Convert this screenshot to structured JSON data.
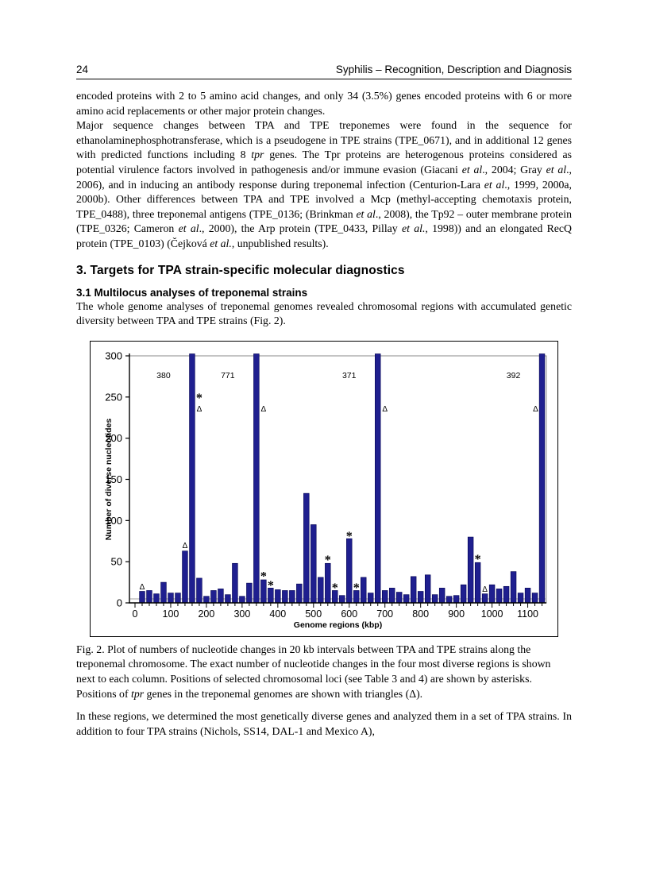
{
  "header": {
    "page_number": "24",
    "running_title": "Syphilis – Recognition, Description and Diagnosis"
  },
  "headings": {
    "section": "3. Targets for TPA strain-specific molecular diagnostics",
    "subsection": "3.1 Multilocus analyses of treponemal strains"
  },
  "paragraphs": {
    "p1": [
      {
        "t": "encoded proteins with 2 to 5 amino acid changes, and only 34 (3.5%) genes encoded proteins with 6 or more amino acid replacements or other major protein changes."
      }
    ],
    "p2": [
      {
        "t": "Major sequence changes between TPA and TPE treponemes were found in the sequence for ethanolaminephosphotransferase, which is a pseudogene in TPE strains (TPE_0671), and in additional 12 genes with predicted functions including 8 "
      },
      {
        "t": "tpr",
        "i": true
      },
      {
        "t": " genes. The Tpr proteins are heterogenous proteins considered as potential virulence factors involved in pathogenesis and/or immune evasion (Giacani "
      },
      {
        "t": "et al",
        "i": true
      },
      {
        "t": "., 2004; Gray "
      },
      {
        "t": "et al",
        "i": true
      },
      {
        "t": "., 2006), and in inducing an antibody response during treponemal infection (Centurion-Lara "
      },
      {
        "t": "et al",
        "i": true
      },
      {
        "t": "., 1999, 2000a, 2000b). Other differences between TPA and TPE involved a Mcp (methyl-accepting chemotaxis protein, TPE_0488), three treponemal antigens (TPE_0136; (Brinkman "
      },
      {
        "t": "et al",
        "i": true
      },
      {
        "t": "., 2008), the Tp92 – outer membrane protein (TPE_0326; Cameron "
      },
      {
        "t": "et al",
        "i": true
      },
      {
        "t": "., 2000), the Arp protein (TPE_0433, Pillay "
      },
      {
        "t": "et al.",
        "i": true
      },
      {
        "t": ", 1998)) and an elongated RecQ protein (TPE_0103) (Čejková "
      },
      {
        "t": "et al.",
        "i": true
      },
      {
        "t": ", unpublished results)."
      }
    ],
    "p3": [
      {
        "t": "The whole genome analyses of treponemal genomes revealed chromosomal regions with accumulated genetic diversity between TPA and TPE strains (Fig. 2)."
      }
    ],
    "p4": [
      {
        "t": "In these regions, we determined the most genetically diverse genes and analyzed them in a set of TPA strains. In addition to four TPA strains (Nichols, SS14, DAL-1 and Mexico A),"
      }
    ]
  },
  "figure": {
    "caption": [
      {
        "t": "Fig. 2. Plot of numbers of nucleotide changes in 20 kb intervals between TPA and TPE strains along the treponemal chromosome. The exact number of nucleotide changes in the four most diverse regions is shown next to each column. Positions of selected chromosomal loci (see Table 3 and 4) are shown by asterisks. Positions of "
      },
      {
        "t": "tpr",
        "i": true
      },
      {
        "t": " genes in the treponemal genomes are shown with triangles (Δ)."
      }
    ]
  },
  "chart_data": {
    "type": "bar",
    "title": "",
    "xlabel": "Genome regions (kbp)",
    "ylabel": "Number of diverse nucleotides",
    "x_interval_kbp": 20,
    "xlim": [
      0,
      1150
    ],
    "ylim": [
      0,
      300
    ],
    "x_ticks": [
      0,
      100,
      200,
      300,
      400,
      500,
      600,
      700,
      800,
      900,
      1000,
      1100
    ],
    "y_ticks": [
      0,
      50,
      100,
      150,
      200,
      250,
      300
    ],
    "grid": false,
    "legend": "none",
    "bar_color": "#1f1f8f",
    "x": [
      20,
      40,
      60,
      80,
      100,
      120,
      140,
      160,
      180,
      200,
      220,
      240,
      260,
      280,
      300,
      320,
      340,
      360,
      380,
      400,
      420,
      440,
      460,
      480,
      500,
      520,
      540,
      560,
      580,
      600,
      620,
      640,
      660,
      680,
      700,
      720,
      740,
      760,
      780,
      800,
      820,
      840,
      860,
      880,
      900,
      920,
      940,
      960,
      980,
      1000,
      1020,
      1040,
      1060,
      1080,
      1100,
      1120,
      1140
    ],
    "values": [
      14,
      15,
      11,
      25,
      12,
      12,
      63,
      380,
      30,
      8,
      15,
      17,
      10,
      48,
      8,
      24,
      771,
      28,
      18,
      16,
      15,
      15,
      23,
      133,
      95,
      31,
      48,
      15,
      9,
      78,
      15,
      31,
      12,
      371,
      15,
      18,
      13,
      10,
      32,
      14,
      34,
      10,
      18,
      8,
      9,
      22,
      80,
      49,
      11,
      22,
      17,
      20,
      38,
      12,
      18,
      12,
      392
    ],
    "clipped_bars": [
      {
        "x": 160,
        "value": 380
      },
      {
        "x": 340,
        "value": 771
      },
      {
        "x": 680,
        "value": 371
      },
      {
        "x": 1140,
        "value": 392
      }
    ],
    "asterisk_markers": [
      {
        "x": 180,
        "v": 252
      },
      {
        "x": 360,
        "v": 35
      },
      {
        "x": 380,
        "v": 24
      },
      {
        "x": 540,
        "v": 55
      },
      {
        "x": 560,
        "v": 21
      },
      {
        "x": 600,
        "v": 84
      },
      {
        "x": 620,
        "v": 21
      },
      {
        "x": 960,
        "v": 56
      }
    ],
    "triangle_markers": [
      {
        "x": 20,
        "v": 20
      },
      {
        "x": 140,
        "v": 70
      },
      {
        "x": 180,
        "v": 236
      },
      {
        "x": 360,
        "v": 236
      },
      {
        "x": 700,
        "v": 236
      },
      {
        "x": 980,
        "v": 17
      },
      {
        "x": 1122,
        "v": 236
      }
    ],
    "annotations": {
      "asterisk_meaning": "positions of selected chromosomal loci (see Table 3 and 4)",
      "triangle_meaning": "positions of tpr genes",
      "clipped_label_meaning": "exact number of nucleotide changes in the four most diverse regions"
    }
  }
}
